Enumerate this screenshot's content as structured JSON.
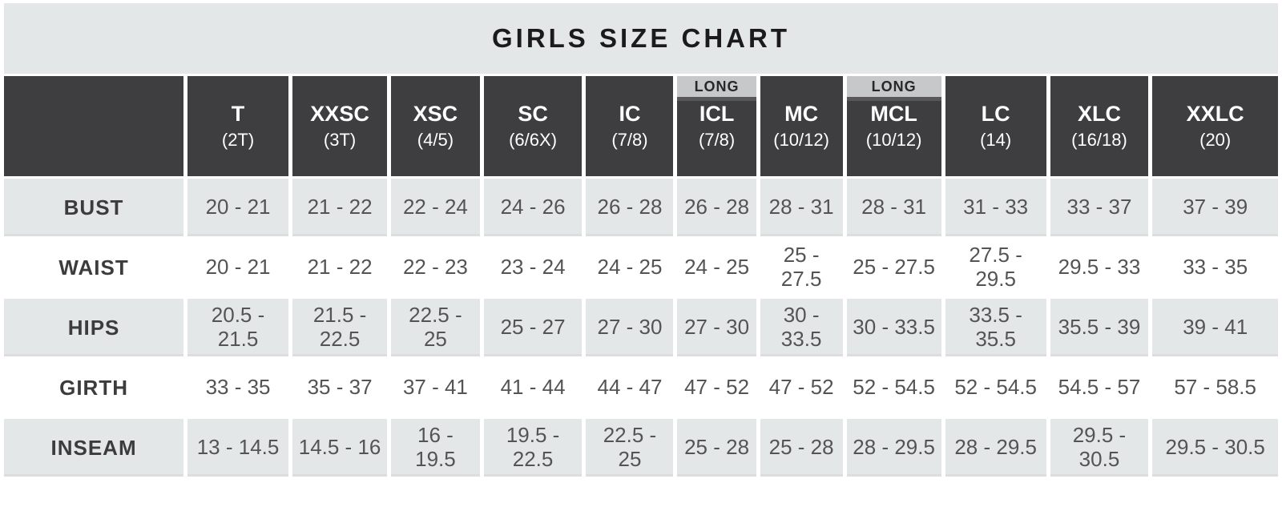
{
  "title": "GIRLS SIZE CHART",
  "long_badge_label": "LONG",
  "colors": {
    "header_bg": "#3E3E40",
    "stripe_bg": "#E4E7E8",
    "long_badge_bg": "#C6C8C9",
    "long_badge_underline": "#58585A",
    "header_text": "#FFFFFF",
    "value_text": "#545456",
    "row_label_text": "#3C3C3E",
    "title_text": "#1B1B1D"
  },
  "chart_data": {
    "type": "table",
    "title": "GIRLS SIZE CHART",
    "columns": [
      {
        "code": "T",
        "alt": "(2T)",
        "long": false
      },
      {
        "code": "XXSC",
        "alt": "(3T)",
        "long": false
      },
      {
        "code": "XSC",
        "alt": "(4/5)",
        "long": false
      },
      {
        "code": "SC",
        "alt": "(6/6X)",
        "long": false
      },
      {
        "code": "IC",
        "alt": "(7/8)",
        "long": false
      },
      {
        "code": "ICL",
        "alt": "(7/8)",
        "long": true
      },
      {
        "code": "MC",
        "alt": "(10/12)",
        "long": false
      },
      {
        "code": "MCL",
        "alt": "(10/12)",
        "long": true
      },
      {
        "code": "LC",
        "alt": "(14)",
        "long": false
      },
      {
        "code": "XLC",
        "alt": "(16/18)",
        "long": false
      },
      {
        "code": "XXLC",
        "alt": "(20)",
        "long": false
      }
    ],
    "rows": [
      {
        "label": "BUST",
        "values": [
          "20 - 21",
          "21 - 22",
          "22 - 24",
          "24 - 26",
          "26 - 28",
          "26 - 28",
          "28 - 31",
          "28 - 31",
          "31 - 33",
          "33 - 37",
          "37 - 39"
        ]
      },
      {
        "label": "WAIST",
        "values": [
          "20 - 21",
          "21 - 22",
          "22 - 23",
          "23 - 24",
          "24 - 25",
          "24 - 25",
          "25 - 27.5",
          "25 - 27.5",
          "27.5 - 29.5",
          "29.5 - 33",
          "33 - 35"
        ]
      },
      {
        "label": "HIPS",
        "values": [
          "20.5 - 21.5",
          "21.5 - 22.5",
          "22.5 - 25",
          "25 - 27",
          "27 - 30",
          "27 - 30",
          "30 - 33.5",
          "30 - 33.5",
          "33.5 - 35.5",
          "35.5 - 39",
          "39 - 41"
        ]
      },
      {
        "label": "GIRTH",
        "values": [
          "33 - 35",
          "35 - 37",
          "37 - 41",
          "41 - 44",
          "44 - 47",
          "47 - 52",
          "47 - 52",
          "52 - 54.5",
          "52 - 54.5",
          "54.5 - 57",
          "57 - 58.5"
        ]
      },
      {
        "label": "INSEAM",
        "values": [
          "13 - 14.5",
          "14.5 - 16",
          "16 - 19.5",
          "19.5 - 22.5",
          "22.5 - 25",
          "25 - 28",
          "25 - 28",
          "28 - 29.5",
          "28 - 29.5",
          "29.5 - 30.5",
          "29.5 - 30.5"
        ]
      }
    ]
  }
}
